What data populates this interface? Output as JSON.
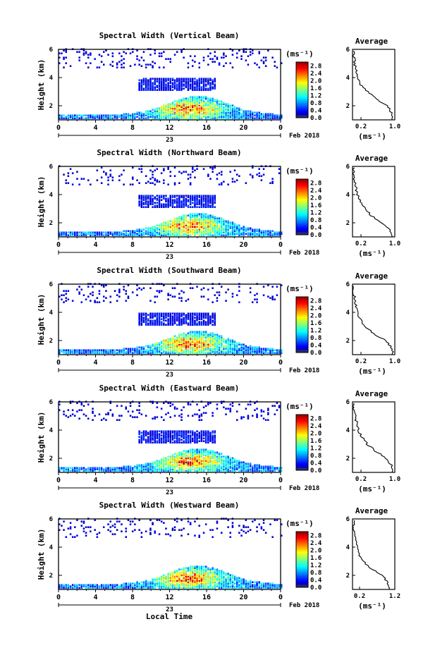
{
  "footer": {
    "xlabel": "Local Time"
  },
  "chart_data": [
    {
      "type": "heatmap",
      "title": "Spectral Width (Vertical Beam)",
      "ylabel": "Height (km)",
      "x_ticks": [
        "0",
        "4",
        "8",
        "12",
        "16",
        "20",
        "0"
      ],
      "date_label": "23",
      "month_label": "Feb 2018",
      "ylim": [
        1,
        6
      ],
      "y_ticks": [
        "2",
        "4",
        "6"
      ],
      "xlim": [
        0,
        24
      ],
      "colorbar": {
        "unit": "(ms⁻¹)",
        "ticks": [
          "0.0",
          "0.4",
          "0.8",
          "1.2",
          "1.6",
          "2.0",
          "2.4",
          "2.8"
        ],
        "range": [
          0,
          3.0
        ]
      },
      "profile": {
        "title": "Average",
        "xlim": [
          0.0,
          1.0
        ],
        "x_ticks": [
          "0.2",
          "1.0"
        ],
        "xlabel": "(ms⁻¹)",
        "y_ticks": [
          "2",
          "4",
          "6"
        ],
        "heights": [
          1.0,
          1.5,
          2.0,
          2.5,
          3.0,
          3.5,
          4.0,
          4.5,
          5.0,
          5.5,
          6.0
        ],
        "values": [
          0.95,
          0.93,
          0.82,
          0.55,
          0.35,
          0.2,
          0.12,
          0.08,
          0.05,
          0.03,
          0.02
        ]
      }
    },
    {
      "type": "heatmap",
      "title": "Spectral Width (Northward Beam)",
      "ylabel": "Height (km)",
      "x_ticks": [
        "0",
        "4",
        "8",
        "12",
        "16",
        "20",
        "0"
      ],
      "date_label": "23",
      "month_label": "Feb 2018",
      "ylim": [
        1,
        6
      ],
      "y_ticks": [
        "2",
        "4",
        "6"
      ],
      "xlim": [
        0,
        24
      ],
      "colorbar": {
        "unit": "(ms⁻¹)",
        "ticks": [
          "0.0",
          "0.4",
          "0.8",
          "1.2",
          "1.6",
          "2.0",
          "2.4",
          "2.8"
        ],
        "range": [
          0,
          3.0
        ]
      },
      "profile": {
        "title": "Average",
        "xlim": [
          0.0,
          1.0
        ],
        "x_ticks": [
          "0.2",
          "1.0"
        ],
        "xlabel": "(ms⁻¹)",
        "y_ticks": [
          "2",
          "4",
          "6"
        ],
        "heights": [
          1.0,
          1.5,
          2.0,
          2.5,
          3.0,
          3.5,
          4.0,
          4.5,
          5.0,
          5.5,
          6.0
        ],
        "values": [
          0.95,
          0.9,
          0.7,
          0.45,
          0.3,
          0.18,
          0.12,
          0.08,
          0.05,
          0.03,
          0.02
        ]
      }
    },
    {
      "type": "heatmap",
      "title": "Spectral Width (Southward Beam)",
      "ylabel": "Height (km)",
      "x_ticks": [
        "0",
        "4",
        "8",
        "12",
        "16",
        "20",
        "0"
      ],
      "date_label": "23",
      "month_label": "Feb 2018",
      "ylim": [
        1,
        6
      ],
      "y_ticks": [
        "2",
        "4",
        "6"
      ],
      "xlim": [
        0,
        24
      ],
      "colorbar": {
        "unit": "(ms⁻¹)",
        "ticks": [
          "0.0",
          "0.4",
          "0.8",
          "1.2",
          "1.6",
          "2.0",
          "2.4",
          "2.8"
        ],
        "range": [
          0,
          3.0
        ]
      },
      "profile": {
        "title": "Average",
        "xlim": [
          0.0,
          1.0
        ],
        "x_ticks": [
          "0.2",
          "1.0"
        ],
        "xlabel": "(ms⁻¹)",
        "y_ticks": [
          "2",
          "4",
          "6"
        ],
        "heights": [
          1.0,
          1.5,
          2.0,
          2.5,
          3.0,
          3.5,
          4.0,
          4.5,
          5.0,
          5.5,
          6.0
        ],
        "values": [
          0.95,
          0.92,
          0.78,
          0.5,
          0.3,
          0.18,
          0.12,
          0.08,
          0.05,
          0.03,
          0.02
        ]
      }
    },
    {
      "type": "heatmap",
      "title": "Spectral Width (Eastward Beam)",
      "ylabel": "Height (km)",
      "x_ticks": [
        "0",
        "4",
        "8",
        "12",
        "16",
        "20",
        "0"
      ],
      "date_label": "23",
      "month_label": "Feb 2018",
      "ylim": [
        1,
        6
      ],
      "y_ticks": [
        "2",
        "4",
        "6"
      ],
      "xlim": [
        0,
        24
      ],
      "colorbar": {
        "unit": "(ms⁻¹)",
        "ticks": [
          "0.0",
          "0.4",
          "0.8",
          "1.2",
          "1.6",
          "2.0",
          "2.4",
          "2.8"
        ],
        "range": [
          0,
          3.0
        ]
      },
      "profile": {
        "title": "Average",
        "xlim": [
          0.0,
          1.0
        ],
        "x_ticks": [
          "0.2",
          "1.0"
        ],
        "xlabel": "(ms⁻¹)",
        "y_ticks": [
          "2",
          "4",
          "6"
        ],
        "heights": [
          1.0,
          1.5,
          2.0,
          2.5,
          3.0,
          3.5,
          4.0,
          4.5,
          5.0,
          5.5,
          6.0
        ],
        "values": [
          0.95,
          0.92,
          0.8,
          0.55,
          0.35,
          0.22,
          0.14,
          0.1,
          0.06,
          0.03,
          0.02
        ]
      }
    },
    {
      "type": "heatmap",
      "title": "Spectral Width (Westward Beam)",
      "ylabel": "Height (km)",
      "x_ticks": [
        "0",
        "4",
        "8",
        "12",
        "16",
        "20",
        "0"
      ],
      "date_label": "23",
      "month_label": "Feb 2018",
      "ylim": [
        1,
        6
      ],
      "y_ticks": [
        "2",
        "4",
        "6"
      ],
      "xlim": [
        0,
        24
      ],
      "colorbar": {
        "unit": "(ms⁻¹)",
        "ticks": [
          "0.0",
          "0.4",
          "0.8",
          "1.2",
          "1.6",
          "2.0",
          "2.4",
          "2.8"
        ],
        "range": [
          0,
          3.0
        ]
      },
      "profile": {
        "title": "Average",
        "xlim": [
          0.0,
          1.2
        ],
        "x_ticks": [
          "0.2",
          "1.2"
        ],
        "xlabel": "(ms⁻¹)",
        "y_ticks": [
          "2",
          "4",
          "6"
        ],
        "heights": [
          1.0,
          1.5,
          2.0,
          2.5,
          3.0,
          3.5,
          4.0,
          4.5,
          5.0,
          5.5,
          6.0
        ],
        "values": [
          1.05,
          1.0,
          0.85,
          0.5,
          0.3,
          0.18,
          0.12,
          0.08,
          0.05,
          0.03,
          0.02
        ]
      }
    }
  ]
}
